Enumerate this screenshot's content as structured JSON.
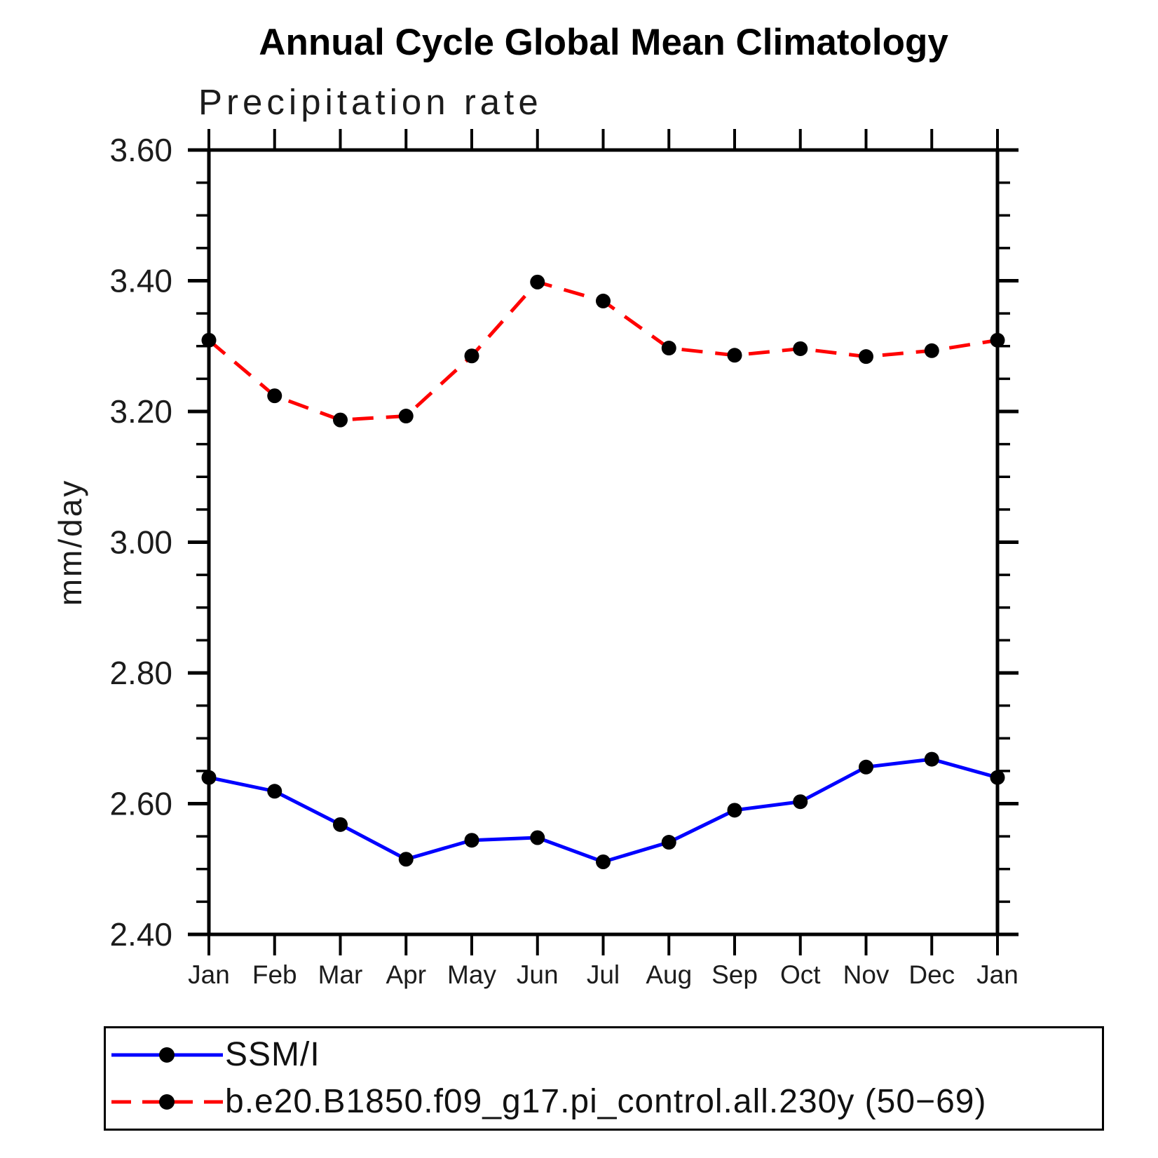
{
  "chart_data": {
    "type": "line",
    "title": "Annual Cycle Global Mean Climatology",
    "subtitle": "Precipitation rate",
    "xlabel": "",
    "ylabel": "mm/day",
    "categories": [
      "Jan",
      "Feb",
      "Mar",
      "Apr",
      "May",
      "Jun",
      "Jul",
      "Aug",
      "Sep",
      "Oct",
      "Nov",
      "Dec",
      "Jan"
    ],
    "ylim": [
      2.4,
      3.6
    ],
    "ytick_major_step": 0.2,
    "ytick_minor_step": 0.05,
    "ytick_labels": [
      "2.40",
      "2.60",
      "2.80",
      "3.00",
      "3.20",
      "3.40",
      "3.60"
    ],
    "grid": false,
    "legend_position": "bottom-left",
    "series": [
      {
        "name": "SSM/I",
        "color": "#0000ff",
        "line_style": "solid",
        "marker": "filled-circle",
        "marker_color": "#000000",
        "values": [
          2.64,
          2.619,
          2.568,
          2.515,
          2.544,
          2.548,
          2.511,
          2.541,
          2.59,
          2.603,
          2.656,
          2.668,
          2.64
        ]
      },
      {
        "name": "b.e20.B1850.f09_g17.pi_control.all.230y (50−69)",
        "color": "#ff0000",
        "line_style": "dashed",
        "marker": "filled-circle",
        "marker_color": "#000000",
        "values": [
          3.309,
          3.224,
          3.187,
          3.193,
          3.285,
          3.398,
          3.369,
          3.297,
          3.286,
          3.296,
          3.284,
          3.293,
          3.309
        ]
      }
    ]
  }
}
